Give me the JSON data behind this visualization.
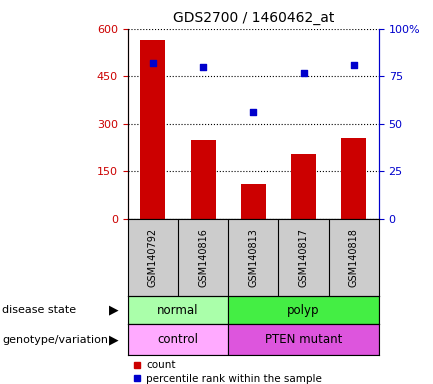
{
  "title": "GDS2700 / 1460462_at",
  "samples": [
    "GSM140792",
    "GSM140816",
    "GSM140813",
    "GSM140817",
    "GSM140818"
  ],
  "counts": [
    565,
    248,
    110,
    205,
    255
  ],
  "percentiles": [
    82,
    80,
    56,
    77,
    81
  ],
  "left_ylim": [
    0,
    600
  ],
  "left_yticks": [
    0,
    150,
    300,
    450,
    600
  ],
  "right_ylim": [
    0,
    100
  ],
  "right_yticks": [
    0,
    25,
    50,
    75,
    100
  ],
  "right_yticklabels": [
    "0",
    "25",
    "50",
    "75",
    "100%"
  ],
  "bar_color": "#cc0000",
  "dot_color": "#0000cc",
  "bar_width": 0.5,
  "left_axis_color": "#cc0000",
  "right_axis_color": "#0000cc",
  "disease_state_colors": {
    "normal": "#aaffaa",
    "polyp": "#44ee44"
  },
  "genotype_colors": {
    "control": "#ffaaff",
    "PTEN mutant": "#dd55dd"
  },
  "label_row1": "disease state",
  "label_row2": "genotype/variation",
  "legend_count_label": "count",
  "legend_pct_label": "percentile rank within the sample",
  "sample_bg_color": "#cccccc",
  "plot_bg_color": "#ffffff"
}
